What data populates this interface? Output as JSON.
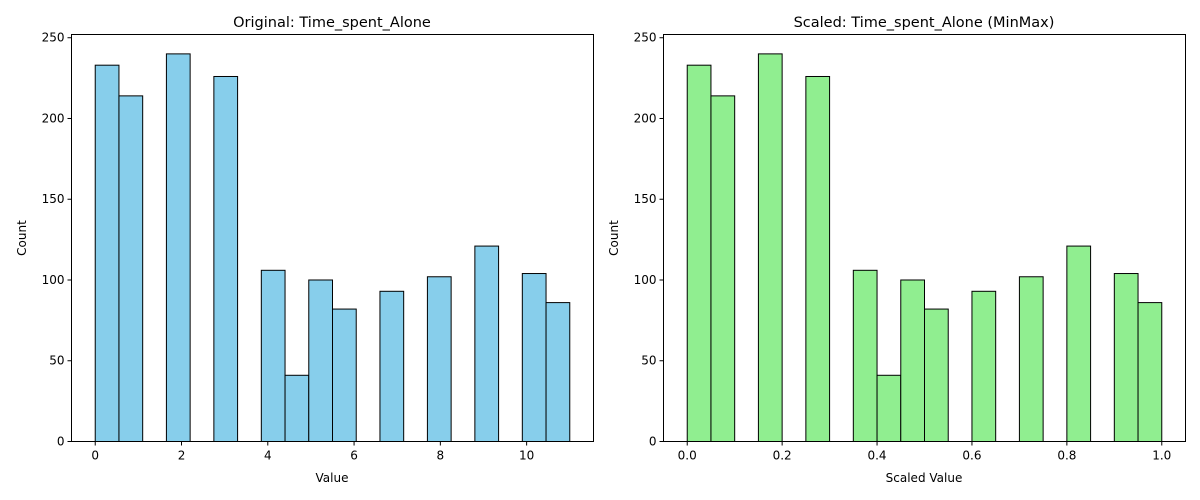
{
  "chart_data": [
    {
      "type": "bar",
      "title": "Original: Time_spent_Alone",
      "xlabel": "Value",
      "ylabel": "Count",
      "color": "#87ceeb",
      "xlim": [
        -0.55,
        11.55
      ],
      "ylim": [
        0,
        252
      ],
      "xticks": [
        0,
        2,
        4,
        6,
        8,
        10
      ],
      "xtick_labels": [
        "0",
        "2",
        "4",
        "6",
        "8",
        "10"
      ],
      "yticks": [
        0,
        50,
        100,
        150,
        200,
        250
      ],
      "bins": [
        {
          "start": 0.0,
          "end": 0.55,
          "count": 233
        },
        {
          "start": 0.55,
          "end": 1.1,
          "count": 214
        },
        {
          "start": 1.65,
          "end": 2.2,
          "count": 240
        },
        {
          "start": 2.75,
          "end": 3.3,
          "count": 226
        },
        {
          "start": 3.85,
          "end": 4.4,
          "count": 106
        },
        {
          "start": 4.4,
          "end": 4.95,
          "count": 41
        },
        {
          "start": 4.95,
          "end": 5.5,
          "count": 100
        },
        {
          "start": 5.5,
          "end": 6.05,
          "count": 82
        },
        {
          "start": 6.6,
          "end": 7.15,
          "count": 93
        },
        {
          "start": 7.7,
          "end": 8.25,
          "count": 102
        },
        {
          "start": 8.8,
          "end": 9.35,
          "count": 121
        },
        {
          "start": 9.9,
          "end": 10.45,
          "count": 104
        },
        {
          "start": 10.45,
          "end": 11.0,
          "count": 86
        }
      ]
    },
    {
      "type": "bar",
      "title": "Scaled: Time_spent_Alone (MinMax)",
      "xlabel": "Scaled Value",
      "ylabel": "Count",
      "color": "#90ee90",
      "xlim": [
        -0.05,
        1.05
      ],
      "ylim": [
        0,
        252
      ],
      "xticks": [
        0.0,
        0.2,
        0.4,
        0.6,
        0.8,
        1.0
      ],
      "xtick_labels": [
        "0.0",
        "0.2",
        "0.4",
        "0.6",
        "0.8",
        "1.0"
      ],
      "yticks": [
        0,
        50,
        100,
        150,
        200,
        250
      ],
      "bins": [
        {
          "start": 0.0,
          "end": 0.05,
          "count": 233
        },
        {
          "start": 0.05,
          "end": 0.1,
          "count": 214
        },
        {
          "start": 0.15,
          "end": 0.2,
          "count": 240
        },
        {
          "start": 0.25,
          "end": 0.3,
          "count": 226
        },
        {
          "start": 0.35,
          "end": 0.4,
          "count": 106
        },
        {
          "start": 0.4,
          "end": 0.45,
          "count": 41
        },
        {
          "start": 0.45,
          "end": 0.5,
          "count": 100
        },
        {
          "start": 0.5,
          "end": 0.55,
          "count": 82
        },
        {
          "start": 0.6,
          "end": 0.65,
          "count": 93
        },
        {
          "start": 0.7,
          "end": 0.75,
          "count": 102
        },
        {
          "start": 0.8,
          "end": 0.85,
          "count": 121
        },
        {
          "start": 0.9,
          "end": 0.95,
          "count": 104
        },
        {
          "start": 0.95,
          "end": 1.0,
          "count": 86
        }
      ]
    }
  ]
}
